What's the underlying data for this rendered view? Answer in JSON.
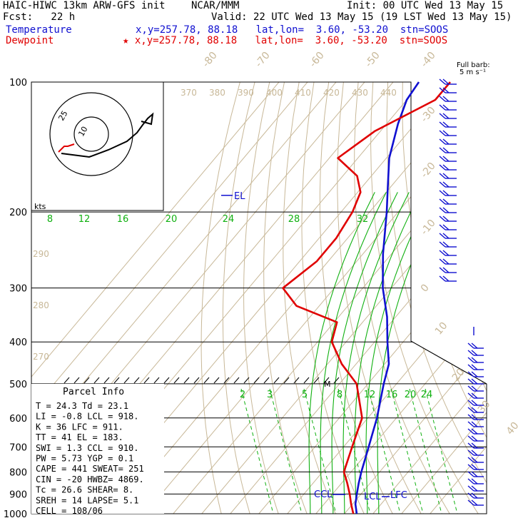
{
  "header": {
    "title": "HAIC-HIWC 13km ARW-GFS init",
    "center": "NCAR/MMM",
    "init": "Init: 00 UTC Wed 13 May 15",
    "fcst": "Fcst:   22 h",
    "valid": "Valid: 22 UTC Wed 13 May 15 (19 LST Wed 13 May 15)",
    "temp_label": "Temperature",
    "temp_loc": "x,y=257.78, 88.18   lat,lon=  3.60, -53.20  stn=SOOS",
    "dew_label": "Dewpoint",
    "dew_loc": "★ x,y=257.78, 88.18   lat,lon=  3.60, -53.20  stn=SOOS"
  },
  "barb_legend": {
    "line1": "Full barb:",
    "line2": "5 m s⁻¹"
  },
  "hodograph": {
    "ring_labels": [
      "25",
      "10"
    ],
    "units": "kts"
  },
  "labels": {
    "el": "EL",
    "ccl": "CCL",
    "lcl": "LCL",
    "lfc": "LFC",
    "m": "M"
  },
  "parcel_info": {
    "title": "Parcel Info",
    "rows": [
      "T  =   24.3  Td =  23.1",
      "LI =   -0.8  LCL =  918.",
      "K  =     36  LFC =  911.",
      "TT =     41  EL  =  183.",
      "SWI =   1.3  CCL =  910.",
      "PW =   5.73  YGP =   0.1",
      "CAPE =  441  SWEAT=  251",
      "CIN =   -20  HWBZ= 4869.",
      "Tc =   26.6  SHEAR=    8.",
      "SREH =   14  LAPSE=   5.1",
      "CELL = 108/06"
    ]
  },
  "colors": {
    "temperature": "#1010d0",
    "dewpoint": "#e00000",
    "mixing": "#10b010",
    "theta": "#c8b898"
  },
  "chart_data": {
    "type": "line",
    "diagram": "skew-T log-P sounding",
    "pressure_axis_ticks": [
      100,
      200,
      300,
      400,
      500,
      600,
      700,
      800,
      900,
      1000
    ],
    "isotherm_labels": [
      "-80",
      "-70",
      "-60",
      "-50",
      "-40",
      "-30",
      "-20",
      "-10",
      "0",
      "10",
      "20",
      "30",
      "40"
    ],
    "theta_labels": [
      "370",
      "380",
      "390",
      "400",
      "410",
      "420",
      "430",
      "440"
    ],
    "theta_left_labels": [
      "290",
      "280",
      "270"
    ],
    "theta_e_labels": [
      "8",
      "12",
      "16",
      "20",
      "24",
      "28",
      "32"
    ],
    "mixing_ratio_labels": [
      "2",
      "3",
      "5",
      "8",
      "12",
      "16",
      "20",
      "24"
    ],
    "series": [
      {
        "name": "Temperature",
        "points": [
          [
            1000,
            24.3
          ],
          [
            950,
            21
          ],
          [
            900,
            18.5
          ],
          [
            850,
            16
          ],
          [
            800,
            13.6
          ],
          [
            700,
            8.8
          ],
          [
            600,
            3.2
          ],
          [
            500,
            -4.5
          ],
          [
            450,
            -8.5
          ],
          [
            400,
            -15.5
          ],
          [
            350,
            -23
          ],
          [
            300,
            -33
          ],
          [
            250,
            -43
          ],
          [
            200,
            -54
          ],
          [
            175,
            -61
          ],
          [
            150,
            -69
          ],
          [
            125,
            -76
          ],
          [
            110,
            -80
          ],
          [
            100,
            -81
          ]
        ]
      },
      {
        "name": "Dewpoint",
        "points": [
          [
            1000,
            23.1
          ],
          [
            950,
            19.5
          ],
          [
            900,
            16
          ],
          [
            850,
            12
          ],
          [
            800,
            7.5
          ],
          [
            700,
            3
          ],
          [
            600,
            -2
          ],
          [
            500,
            -14
          ],
          [
            450,
            -25
          ],
          [
            400,
            -35
          ],
          [
            360,
            -39
          ],
          [
            330,
            -58
          ],
          [
            300,
            -68
          ],
          [
            260,
            -64
          ],
          [
            230,
            -64
          ],
          [
            200,
            -66
          ],
          [
            180,
            -69
          ],
          [
            165,
            -75
          ],
          [
            150,
            -87
          ],
          [
            130,
            -82
          ],
          [
            110,
            -70
          ],
          [
            100,
            -70
          ]
        ]
      }
    ],
    "ylabel": "",
    "xlabel": ""
  }
}
